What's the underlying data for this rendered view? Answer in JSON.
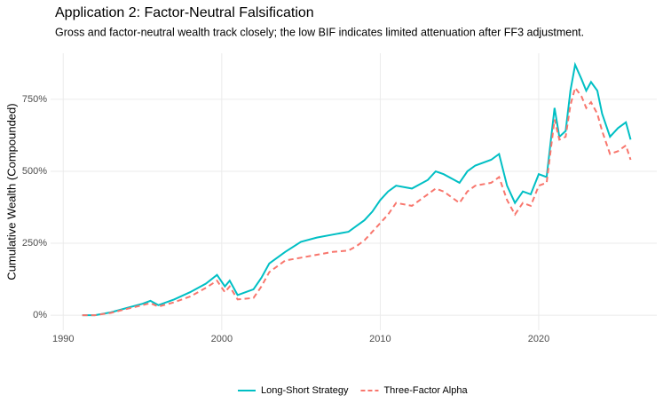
{
  "chart_data": {
    "type": "line",
    "title": "Application 2: Factor-Neutral Falsification",
    "subtitle": "Gross and factor-neutral wealth track closely; the low BIF indicates limited attenuation after FF3 adjustment.",
    "ylabel": "Cumulative Wealth (Compounded)",
    "x": [
      1991.2,
      1992,
      1993,
      1994,
      1995,
      1995.5,
      1996,
      1997,
      1998,
      1999,
      1999.7,
      2000.2,
      2000.5,
      2001,
      2002,
      2002.5,
      2003,
      2004,
      2005,
      2006,
      2007,
      2008,
      2008.5,
      2009,
      2009.5,
      2010,
      2010.5,
      2011,
      2012,
      2013,
      2013.5,
      2014,
      2015,
      2015.5,
      2016,
      2017,
      2017.5,
      2018,
      2018.5,
      2019,
      2019.5,
      2020,
      2020.5,
      2021,
      2021.3,
      2021.7,
      2022,
      2022.3,
      2022.7,
      2023,
      2023.3,
      2023.7,
      2024,
      2024.5,
      2025,
      2025.5,
      2025.8
    ],
    "series": [
      {
        "name": "Long-Short Strategy",
        "color": "#00BFC4",
        "linestyle": "solid",
        "values": [
          0,
          0,
          10,
          25,
          40,
          50,
          35,
          55,
          80,
          110,
          140,
          100,
          120,
          70,
          90,
          130,
          180,
          220,
          255,
          270,
          280,
          290,
          310,
          330,
          360,
          400,
          430,
          450,
          440,
          470,
          500,
          490,
          460,
          500,
          520,
          540,
          560,
          450,
          390,
          430,
          420,
          490,
          480,
          720,
          620,
          640,
          780,
          870,
          820,
          780,
          810,
          780,
          700,
          620,
          650,
          670,
          610
        ]
      },
      {
        "name": "Three-Factor Alpha",
        "color": "#F8766D",
        "linestyle": "dashed",
        "values": [
          0,
          0,
          8,
          22,
          35,
          42,
          30,
          45,
          65,
          95,
          120,
          80,
          100,
          55,
          60,
          100,
          150,
          190,
          200,
          210,
          220,
          225,
          240,
          260,
          290,
          320,
          350,
          390,
          380,
          420,
          440,
          430,
          390,
          430,
          450,
          460,
          480,
          400,
          350,
          390,
          380,
          450,
          460,
          680,
          610,
          620,
          730,
          790,
          760,
          720,
          740,
          700,
          640,
          560,
          570,
          590,
          540
        ]
      }
    ],
    "xlim": [
      1989.2,
      2027.45
    ],
    "xticks": [
      1990,
      2000,
      2010,
      2020
    ],
    "ylim": [
      -52,
      910
    ],
    "yticks": [
      {
        "value": 0,
        "label": "0%"
      },
      {
        "value": 250,
        "label": "250%"
      },
      {
        "value": 500,
        "label": "500%"
      },
      {
        "value": 750,
        "label": "750%"
      }
    ],
    "grid": true,
    "legend": "bottom"
  }
}
